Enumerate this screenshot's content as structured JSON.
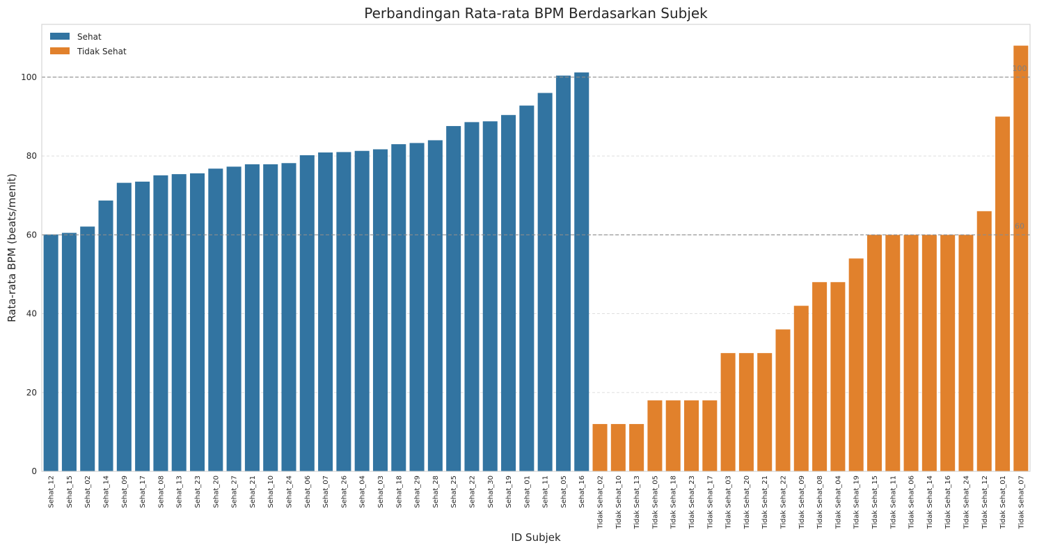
{
  "chart_data": {
    "type": "bar",
    "title": "Perbandingan Rata-rata BPM Berdasarkan Subjek",
    "xlabel": "ID Subjek",
    "ylabel": "Rata-rata BPM (beats/menit)",
    "ylim": [
      0,
      113.4
    ],
    "yticks": [
      0,
      20,
      40,
      60,
      80,
      100
    ],
    "grid": "y-dashed",
    "legend_placement": "top-left",
    "series": [
      {
        "name": "Sehat",
        "color": "#3274a1",
        "categories": [
          "Sehat_12",
          "Sehat_15",
          "Sehat_02",
          "Sehat_14",
          "Sehat_09",
          "Sehat_17",
          "Sehat_08",
          "Sehat_13",
          "Sehat_23",
          "Sehat_20",
          "Sehat_27",
          "Sehat_21",
          "Sehat_10",
          "Sehat_24",
          "Sehat_06",
          "Sehat_07",
          "Sehat_26",
          "Sehat_04",
          "Sehat_03",
          "Sehat_18",
          "Sehat_29",
          "Sehat_28",
          "Sehat_25",
          "Sehat_22",
          "Sehat_30",
          "Sehat_19",
          "Sehat_01",
          "Sehat_11",
          "Sehat_05",
          "Sehat_16"
        ],
        "values": [
          60.1,
          60.5,
          62.1,
          68.7,
          73.2,
          73.5,
          75.1,
          75.4,
          75.6,
          76.8,
          77.3,
          77.9,
          77.9,
          78.2,
          80.2,
          80.9,
          81.0,
          81.3,
          81.7,
          83.0,
          83.3,
          84.0,
          87.6,
          88.6,
          88.8,
          90.4,
          92.8,
          96.0,
          100.4,
          101.2
        ]
      },
      {
        "name": "Tidak Sehat",
        "color": "#e1812c",
        "categories": [
          "Tidak Sehat_02",
          "Tidak Sehat_10",
          "Tidak Sehat_13",
          "Tidak Sehat_05",
          "Tidak Sehat_18",
          "Tidak Sehat_23",
          "Tidak Sehat_17",
          "Tidak Sehat_03",
          "Tidak Sehat_20",
          "Tidak Sehat_21",
          "Tidak Sehat_22",
          "Tidak Sehat_09",
          "Tidak Sehat_08",
          "Tidak Sehat_04",
          "Tidak Sehat_19",
          "Tidak Sehat_15",
          "Tidak Sehat_11",
          "Tidak Sehat_06",
          "Tidak Sehat_14",
          "Tidak Sehat_16",
          "Tidak Sehat_24",
          "Tidak Sehat_12",
          "Tidak Sehat_01",
          "Tidak Sehat_07"
        ],
        "values": [
          12,
          12,
          12,
          18,
          18,
          18,
          18,
          30,
          30,
          30,
          36,
          42,
          48,
          48,
          54,
          60,
          60,
          60,
          60,
          60,
          60,
          66,
          90,
          108
        ]
      }
    ],
    "reference_lines": [
      {
        "value": 100,
        "label": "100"
      },
      {
        "value": 60,
        "label": "60"
      }
    ]
  }
}
